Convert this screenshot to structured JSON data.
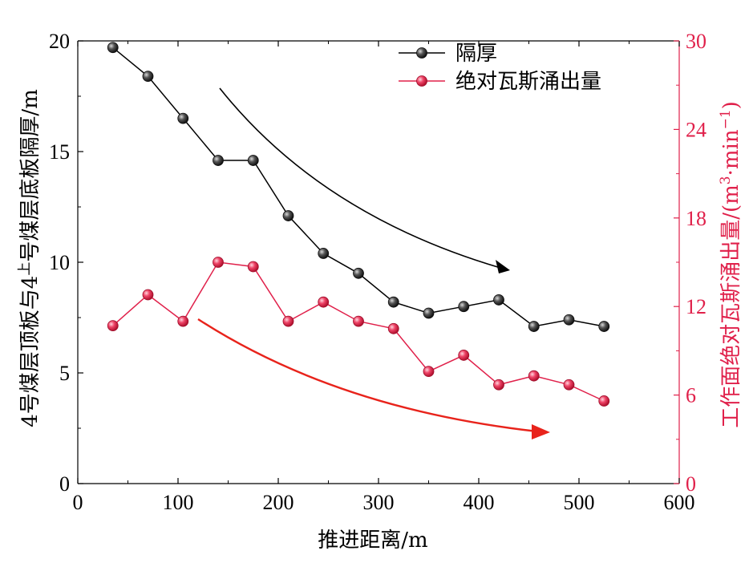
{
  "chart_data": {
    "type": "line",
    "x": [
      35,
      70,
      105,
      140,
      175,
      210,
      245,
      280,
      315,
      350,
      385,
      420,
      455,
      490,
      525
    ],
    "xlabel": "推进距离/m",
    "xlim": [
      0,
      600
    ],
    "xticks": [
      "0",
      "100",
      "200",
      "300",
      "400",
      "500",
      "600"
    ],
    "y_left": {
      "label": "4号煤层顶板与4上号煤层底板隔厚/m",
      "label_parts": {
        "main": "4号煤层顶板与4",
        "sup": "上",
        "rest": "号煤层底板隔厚/m"
      },
      "lim": [
        0,
        20
      ],
      "ticks": [
        "0",
        "5",
        "10",
        "15",
        "20"
      ]
    },
    "y_right": {
      "label": "工作面绝对瓦斯涌出量/(m³·min⁻¹)",
      "label_parts": {
        "main": "工作面绝对瓦斯涌出量/(m",
        "sup1": "3",
        "mid": "·min",
        "sup2": "−1",
        "end": ")"
      },
      "lim": [
        0,
        30
      ],
      "ticks": [
        "0",
        "6",
        "12",
        "18",
        "24",
        "30"
      ],
      "color": "#e0204a"
    },
    "series": [
      {
        "name": "隔厚",
        "axis": "left",
        "values": [
          19.7,
          18.4,
          16.5,
          14.6,
          14.6,
          12.1,
          10.4,
          9.5,
          8.2,
          7.7,
          8.0,
          8.3,
          7.1,
          7.4,
          7.1
        ],
        "line_color": "#000000",
        "marker_color": "#3a3a3a"
      },
      {
        "name": "绝对瓦斯涌出量",
        "axis": "right",
        "values": [
          10.7,
          12.8,
          11.0,
          15.0,
          14.7,
          11.0,
          12.3,
          11.0,
          10.5,
          7.6,
          8.7,
          6.7,
          7.3,
          6.7,
          5.6
        ],
        "line_color": "#e0204a",
        "marker_color": "#ea3d5f"
      }
    ],
    "legend_position": "top-right",
    "trend_arrows": [
      {
        "color": "#000000"
      },
      {
        "color": "#e8231b"
      }
    ]
  }
}
